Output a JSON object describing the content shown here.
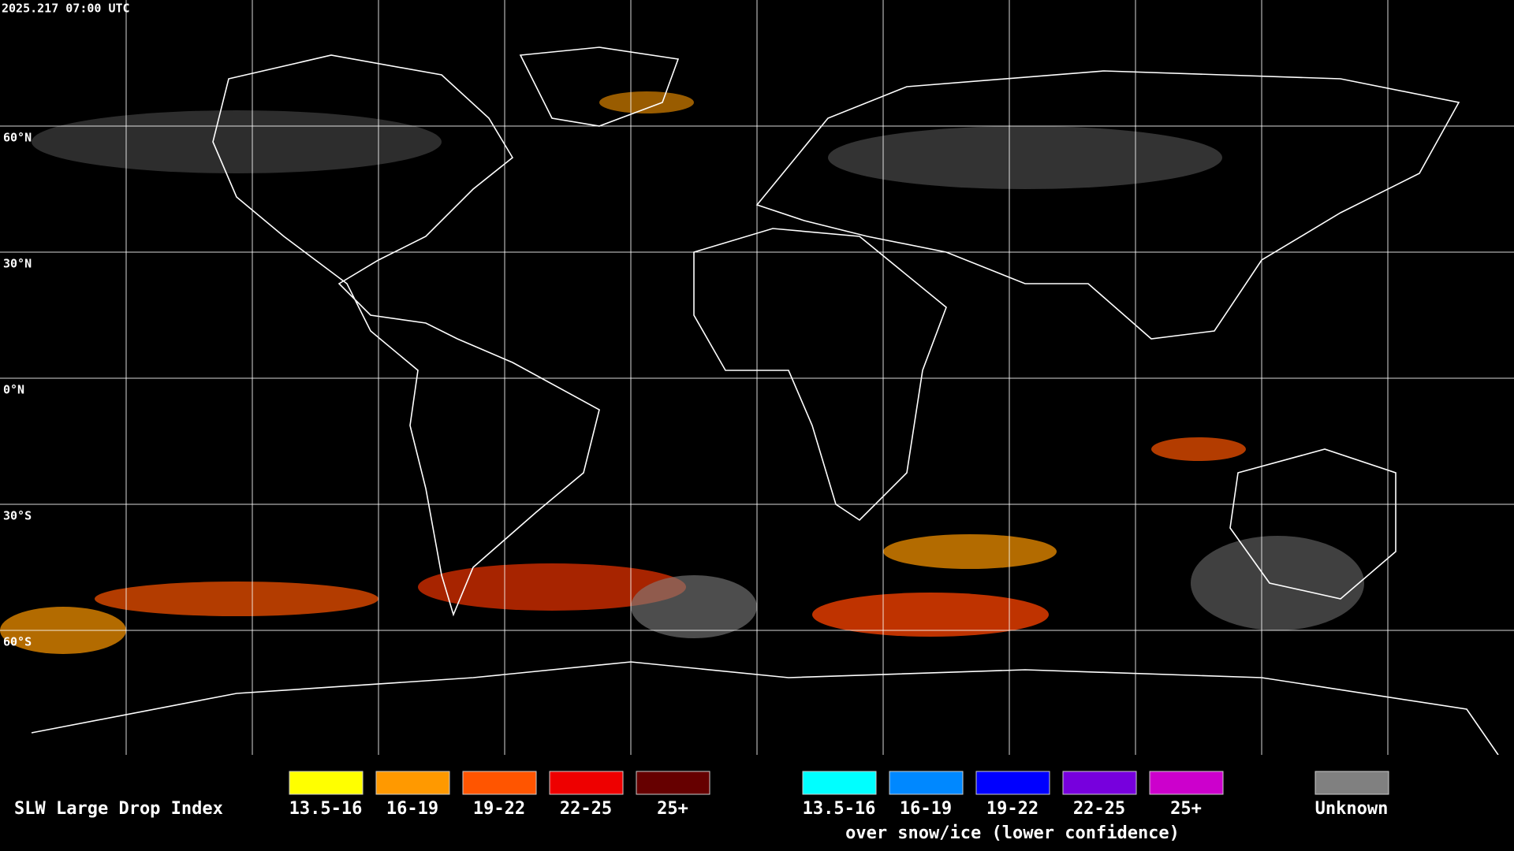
{
  "header": {
    "timestamp": "2025.217 07:00 UTC"
  },
  "lat_labels": [
    "60°N",
    "30°N",
    "0°N",
    "30°S",
    "60°S"
  ],
  "legend": {
    "title": "SLW Large Drop Index",
    "groups": [
      {
        "items": [
          {
            "label": "13.5-16",
            "color": "#ffff00"
          },
          {
            "label": "16-19",
            "color": "#ff9900"
          },
          {
            "label": "19-22",
            "color": "#ff5500"
          },
          {
            "label": "22-25",
            "color": "#ee0000"
          },
          {
            "label": "25+",
            "color": "#660000"
          }
        ]
      },
      {
        "items": [
          {
            "label": "13.5-16",
            "color": "#00ffff"
          },
          {
            "label": "16-19",
            "color": "#0088ff"
          },
          {
            "label": "19-22",
            "color": "#0000ff"
          },
          {
            "label": "22-25",
            "color": "#7700dd"
          },
          {
            "label": "25+",
            "color": "#cc00cc"
          }
        ],
        "note": "over snow/ice (lower confidence)"
      }
    ],
    "unknown": {
      "label": "Unknown",
      "color": "#808080"
    }
  }
}
